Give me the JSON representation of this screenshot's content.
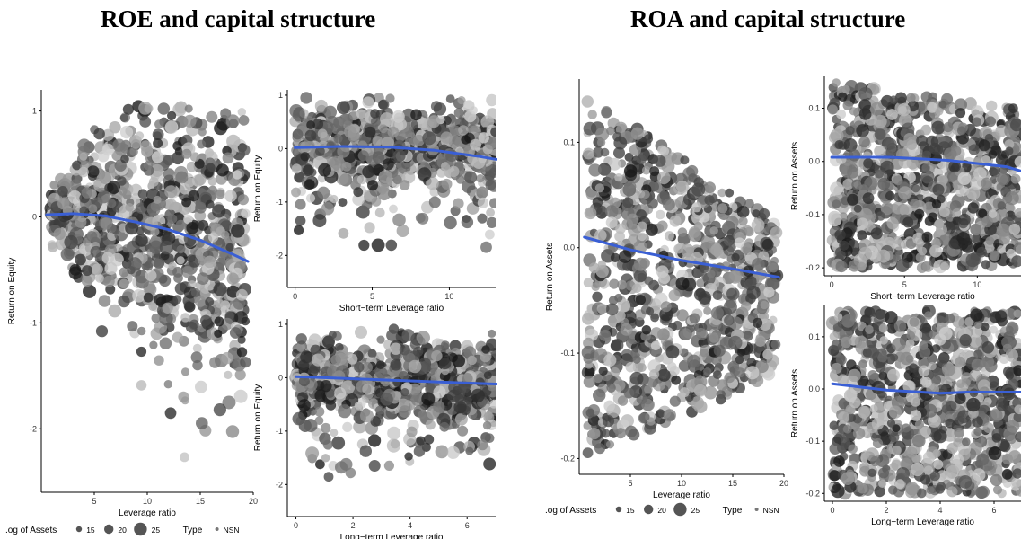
{
  "titles": {
    "left": "ROE and capital structure",
    "right": "ROA and capital structure"
  },
  "legend": {
    "size_label": "Log of Assets",
    "size_label_left": ".og of Assets",
    "size_label_right": ".og of Assets",
    "sizes": [
      "15",
      "20",
      "25"
    ],
    "type_label": "Type",
    "type_value": "NSN"
  },
  "colors": {
    "points": "#1a1a1a",
    "trend": "#3a5fd4",
    "axis": "#000000"
  },
  "chart_data": [
    {
      "id": "roe-leverage",
      "type": "scatter",
      "xlabel": "Leverage ratio",
      "ylabel": "Return on Equity",
      "xlim": [
        0,
        20
      ],
      "ylim": [
        -2.6,
        1.2
      ],
      "xticks": [
        "5",
        "10",
        "15",
        "20"
      ],
      "yticks": [
        "1",
        "0",
        "-1",
        "-2"
      ],
      "trend": {
        "x": [
          0.5,
          3,
          6,
          9,
          12,
          15,
          18,
          19.5
        ],
        "y": [
          0.02,
          0.03,
          0.01,
          -0.05,
          -0.12,
          -0.22,
          -0.35,
          -0.42
        ]
      }
    },
    {
      "id": "roe-short",
      "type": "scatter",
      "xlabel": "Short−term Leverage ratio",
      "ylabel": "Return on Equity",
      "xlim": [
        -0.5,
        13
      ],
      "ylim": [
        -2.6,
        1.1
      ],
      "xticks": [
        "0",
        "5",
        "10"
      ],
      "yticks": [
        "1",
        "0",
        "-1",
        "-2"
      ],
      "trend": {
        "x": [
          0,
          3,
          6,
          9,
          12,
          13
        ],
        "y": [
          0.02,
          0.04,
          0.03,
          -0.03,
          -0.15,
          -0.2
        ]
      }
    },
    {
      "id": "roe-long",
      "type": "scatter",
      "xlabel": "Long−term Leverage ratio",
      "ylabel": "Return on Equity",
      "xlim": [
        -0.3,
        7
      ],
      "ylim": [
        -2.6,
        1.1
      ],
      "xticks": [
        "0",
        "2",
        "4",
        "6"
      ],
      "yticks": [
        "1",
        "0",
        "-1",
        "-2"
      ],
      "trend": {
        "x": [
          0,
          2,
          4,
          6,
          7
        ],
        "y": [
          0.02,
          -0.02,
          -0.06,
          -0.1,
          -0.12
        ]
      }
    },
    {
      "id": "roa-leverage",
      "type": "scatter",
      "xlabel": "Leverage ratio",
      "ylabel": "Return on Assets",
      "xlim": [
        0,
        20
      ],
      "ylim": [
        -0.215,
        0.16
      ],
      "xticks": [
        "5",
        "10",
        "15",
        "20"
      ],
      "yticks": [
        "0.1",
        "0.0",
        "-0.1",
        "-0.2"
      ],
      "trend": {
        "x": [
          0.5,
          5,
          10,
          15,
          19.5
        ],
        "y": [
          0.01,
          -0.002,
          -0.012,
          -0.02,
          -0.028
        ]
      }
    },
    {
      "id": "roa-short",
      "type": "scatter",
      "xlabel": "Short−term Leverage ratio",
      "ylabel": "Return on Assets",
      "xlim": [
        -0.5,
        13
      ],
      "ylim": [
        -0.215,
        0.16
      ],
      "xticks": [
        "0",
        "5",
        "10"
      ],
      "yticks": [
        "0.1",
        "0.0",
        "-0.1",
        "-0.2"
      ],
      "trend": {
        "x": [
          0,
          4,
          8,
          12,
          13
        ],
        "y": [
          0.008,
          0.008,
          0.002,
          -0.01,
          -0.018
        ]
      }
    },
    {
      "id": "roa-long",
      "type": "scatter",
      "xlabel": "Long−term Leverage ratio",
      "ylabel": "Return on Assets",
      "xlim": [
        -0.3,
        7
      ],
      "ylim": [
        -0.215,
        0.16
      ],
      "xticks": [
        "0",
        "2",
        "4",
        "6"
      ],
      "yticks": [
        "0.1",
        "0.0",
        "-0.1",
        "-0.2"
      ],
      "trend": {
        "x": [
          0,
          2,
          4,
          5,
          7
        ],
        "y": [
          0.01,
          -0.002,
          -0.008,
          -0.006,
          -0.006
        ]
      }
    }
  ]
}
